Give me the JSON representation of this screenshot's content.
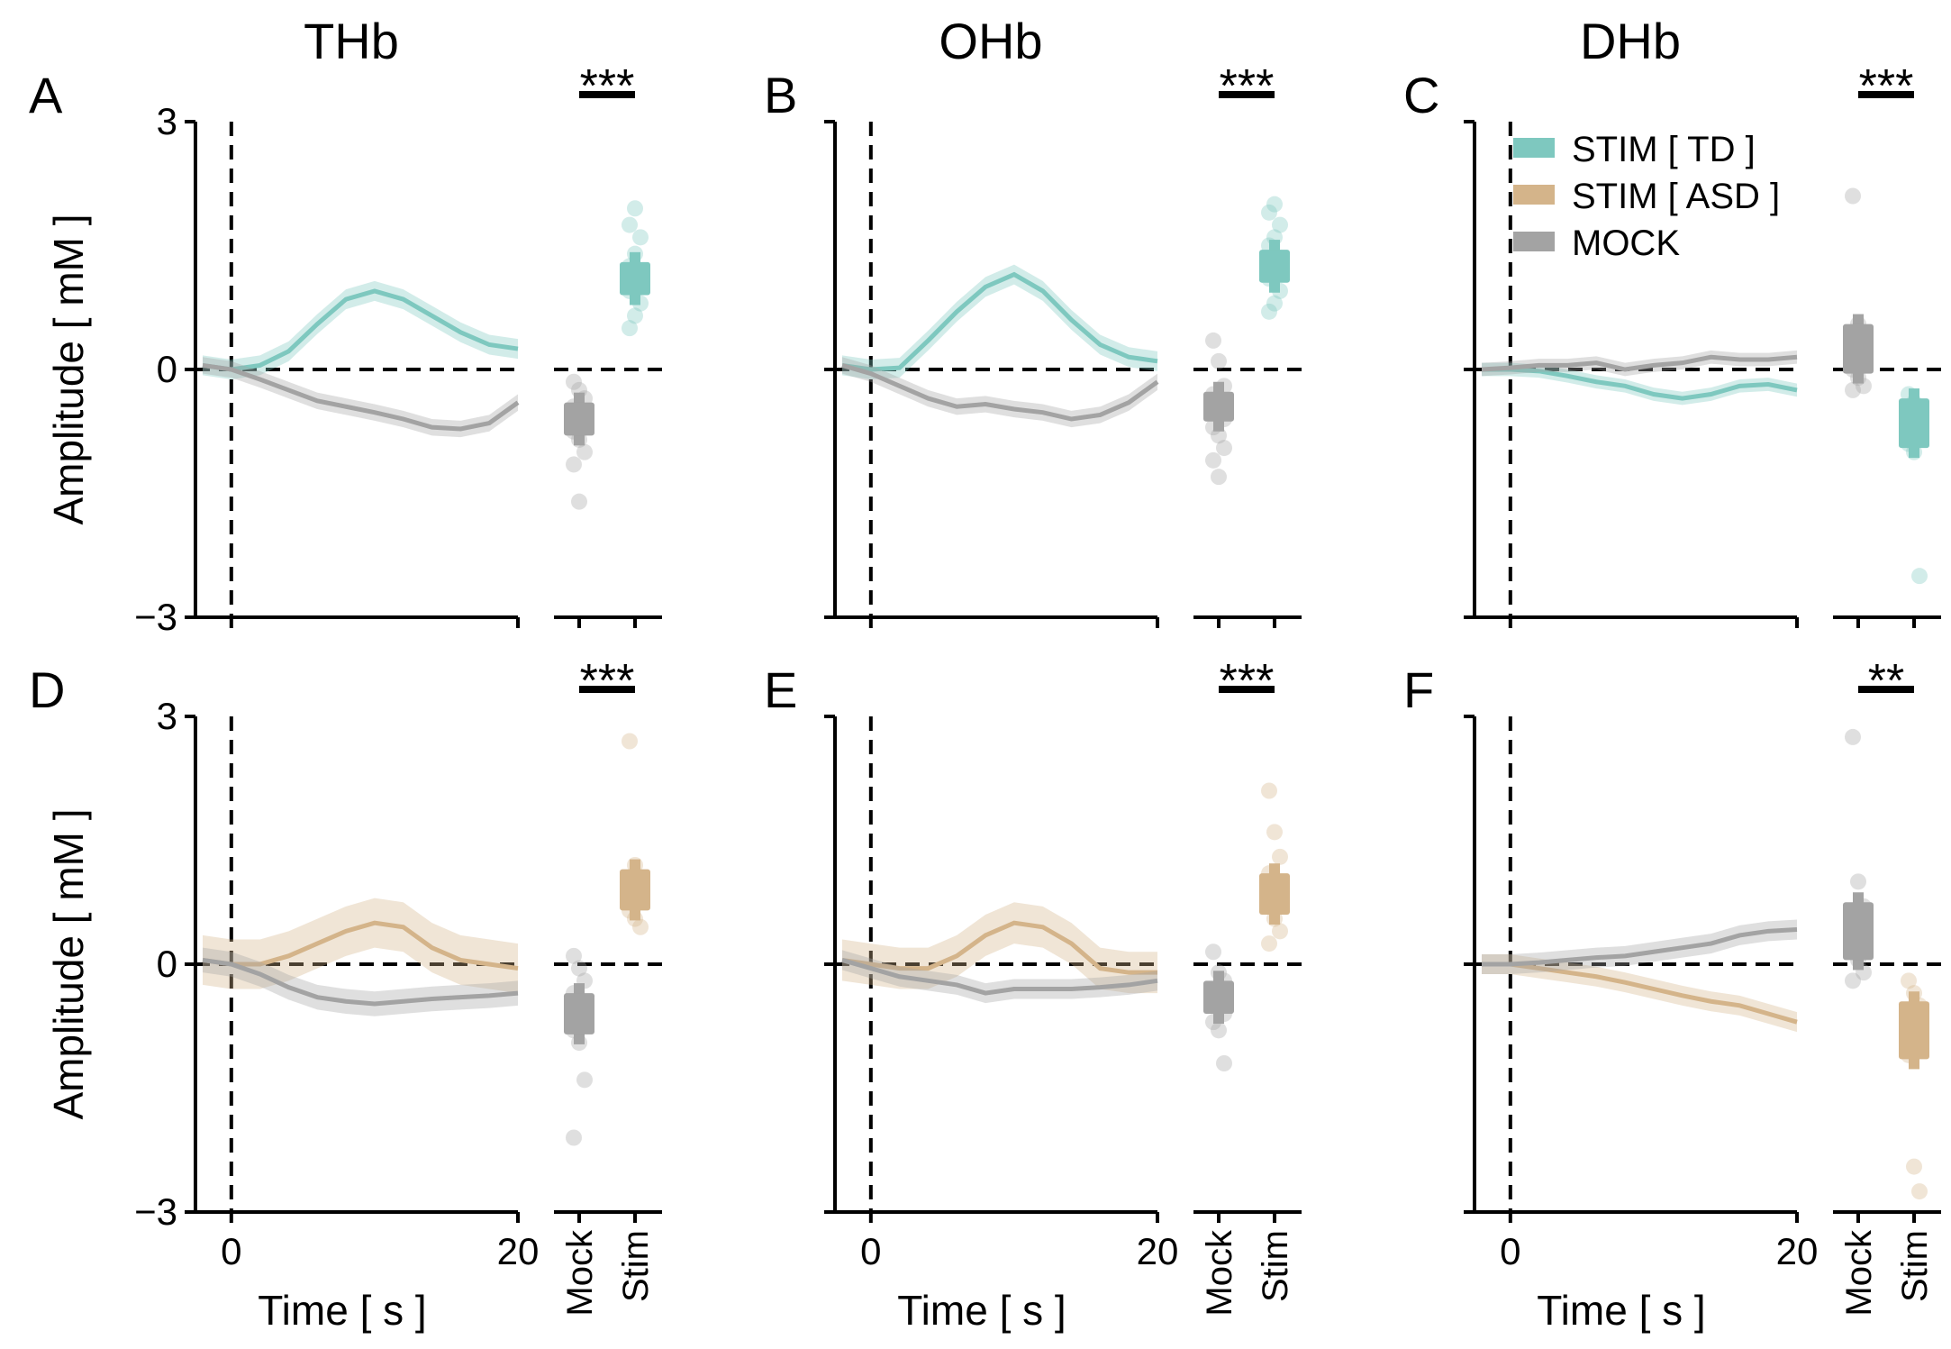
{
  "colors": {
    "td": "#7ec8bf",
    "asd": "#d4b48a",
    "mock": "#a3a3a3",
    "axis": "#000000"
  },
  "legend": {
    "items": [
      {
        "label": "STIM [ TD ]",
        "color": "#7ec8bf"
      },
      {
        "label": "STIM [ ASD ]",
        "color": "#d4b48a"
      },
      {
        "label": "MOCK",
        "color": "#a3a3a3"
      }
    ]
  },
  "labels": {
    "ylabel": "Amplitude [ mM ]",
    "xlabel": "Time [ s ]",
    "mock_tick": "Mock",
    "stim_tick": "Stim"
  },
  "chart_data": [
    {
      "panel": "A",
      "title": "THb",
      "type": "line",
      "group": "td",
      "significance": "***",
      "xlim": [
        -2,
        20
      ],
      "ylim": [
        -3,
        3
      ],
      "xticks": [
        "0",
        "20"
      ],
      "yticks": [
        "3",
        "0",
        "−3"
      ],
      "series": [
        {
          "name": "STIM [ TD ]",
          "color_key": "td",
          "x": [
            -2,
            0,
            2,
            4,
            6,
            8,
            10,
            12,
            14,
            16,
            18,
            20
          ],
          "y": [
            0.05,
            0,
            0.05,
            0.22,
            0.55,
            0.85,
            0.95,
            0.85,
            0.65,
            0.45,
            0.3,
            0.25
          ],
          "band": 0.12
        },
        {
          "name": "MOCK",
          "color_key": "mock",
          "x": [
            -2,
            0,
            2,
            4,
            6,
            8,
            10,
            12,
            14,
            16,
            18,
            20
          ],
          "y": [
            0.05,
            0,
            -0.12,
            -0.25,
            -0.38,
            -0.45,
            -0.52,
            -0.6,
            -0.7,
            -0.72,
            -0.65,
            -0.4
          ],
          "band": 0.1
        }
      ],
      "scatter": {
        "mock": {
          "mean": -0.6,
          "sem": 0.2,
          "points": [
            -0.15,
            -0.25,
            -0.35,
            -0.45,
            -0.55,
            -0.65,
            -0.75,
            -0.85,
            -1.0,
            -1.15,
            -1.6
          ]
        },
        "stim": {
          "mean": 1.1,
          "sem": 0.2,
          "points": [
            0.5,
            0.65,
            0.8,
            0.95,
            1.05,
            1.15,
            1.25,
            1.4,
            1.6,
            1.75,
            1.95
          ]
        }
      }
    },
    {
      "panel": "B",
      "title": "OHb",
      "type": "line",
      "group": "td",
      "significance": "***",
      "xlim": [
        -2,
        20
      ],
      "ylim": [
        -3,
        3
      ],
      "xticks": [
        "0",
        "20"
      ],
      "yticks": [],
      "series": [
        {
          "name": "STIM [ TD ]",
          "color_key": "td",
          "x": [
            -2,
            0,
            2,
            4,
            6,
            8,
            10,
            12,
            14,
            16,
            18,
            20
          ],
          "y": [
            0.05,
            0,
            0.02,
            0.35,
            0.7,
            1.0,
            1.15,
            0.95,
            0.6,
            0.3,
            0.15,
            0.1
          ],
          "band": 0.12
        },
        {
          "name": "MOCK",
          "color_key": "mock",
          "x": [
            -2,
            0,
            2,
            4,
            6,
            8,
            10,
            12,
            14,
            16,
            18,
            20
          ],
          "y": [
            0.05,
            -0.05,
            -0.2,
            -0.35,
            -0.45,
            -0.42,
            -0.48,
            -0.52,
            -0.6,
            -0.55,
            -0.4,
            -0.15
          ],
          "band": 0.1
        }
      ],
      "scatter": {
        "mock": {
          "mean": -0.45,
          "sem": 0.18,
          "points": [
            0.35,
            0.1,
            -0.2,
            -0.3,
            -0.5,
            -0.6,
            -0.7,
            -0.8,
            -0.95,
            -1.1,
            -1.3
          ]
        },
        "stim": {
          "mean": 1.25,
          "sem": 0.2,
          "points": [
            0.7,
            0.8,
            0.95,
            1.1,
            1.2,
            1.35,
            1.5,
            1.6,
            1.75,
            1.9,
            2.0
          ]
        }
      }
    },
    {
      "panel": "C",
      "title": "DHb",
      "type": "line",
      "group": "td",
      "significance": "***",
      "xlim": [
        -2,
        20
      ],
      "ylim": [
        -3,
        3
      ],
      "xticks": [
        "0",
        "20"
      ],
      "yticks": [],
      "series": [
        {
          "name": "STIM [ TD ]",
          "color_key": "td",
          "x": [
            -2,
            0,
            2,
            4,
            6,
            8,
            10,
            12,
            14,
            16,
            18,
            20
          ],
          "y": [
            0,
            0,
            -0.02,
            -0.08,
            -0.15,
            -0.2,
            -0.3,
            -0.35,
            -0.3,
            -0.2,
            -0.18,
            -0.25
          ],
          "band": 0.08
        },
        {
          "name": "MOCK",
          "color_key": "mock",
          "x": [
            -2,
            0,
            2,
            4,
            6,
            8,
            10,
            12,
            14,
            16,
            18,
            20
          ],
          "y": [
            0,
            0.02,
            0.05,
            0.05,
            0.08,
            0.0,
            0.05,
            0.08,
            0.15,
            0.12,
            0.12,
            0.15
          ],
          "band": 0.08
        }
      ],
      "scatter": {
        "mock": {
          "mean": 0.25,
          "sem": 0.3,
          "points": [
            2.1,
            0.55,
            0.4,
            0.3,
            0.2,
            0.1,
            0.0,
            -0.1,
            -0.2,
            -0.25
          ]
        },
        "stim": {
          "mean": -0.65,
          "sem": 0.3,
          "points": [
            -0.3,
            -0.4,
            -0.5,
            -0.6,
            -0.7,
            -0.8,
            -0.9,
            -1.0,
            -2.5
          ]
        }
      }
    },
    {
      "panel": "D",
      "title": "",
      "type": "line",
      "group": "asd",
      "significance": "***",
      "xlim": [
        -2,
        20
      ],
      "ylim": [
        -3,
        3
      ],
      "xticks": [
        "0",
        "20"
      ],
      "yticks": [
        "3",
        "0",
        "−3"
      ],
      "series": [
        {
          "name": "STIM [ ASD ]",
          "color_key": "asd",
          "x": [
            -2,
            0,
            2,
            4,
            6,
            8,
            10,
            12,
            14,
            16,
            18,
            20
          ],
          "y": [
            0.05,
            0,
            0.0,
            0.1,
            0.25,
            0.4,
            0.5,
            0.45,
            0.2,
            0.05,
            0.0,
            -0.05
          ],
          "band": 0.3
        },
        {
          "name": "MOCK",
          "color_key": "mock",
          "x": [
            -2,
            0,
            2,
            4,
            6,
            8,
            10,
            12,
            14,
            16,
            18,
            20
          ],
          "y": [
            0.05,
            0,
            -0.12,
            -0.28,
            -0.4,
            -0.45,
            -0.48,
            -0.45,
            -0.42,
            -0.4,
            -0.38,
            -0.35
          ],
          "band": 0.15
        }
      ],
      "scatter": {
        "mock": {
          "mean": -0.6,
          "sem": 0.25,
          "points": [
            0.1,
            -0.05,
            -0.2,
            -0.35,
            -0.5,
            -0.65,
            -0.8,
            -0.95,
            -1.4,
            -2.1
          ]
        },
        "stim": {
          "mean": 0.9,
          "sem": 0.25,
          "points": [
            2.7,
            1.2,
            1.05,
            0.95,
            0.85,
            0.75,
            0.65,
            0.55,
            0.45
          ]
        }
      }
    },
    {
      "panel": "E",
      "title": "",
      "type": "line",
      "group": "asd",
      "significance": "***",
      "xlim": [
        -2,
        20
      ],
      "ylim": [
        -3,
        3
      ],
      "xticks": [
        "0",
        "20"
      ],
      "yticks": [],
      "series": [
        {
          "name": "STIM [ ASD ]",
          "color_key": "asd",
          "x": [
            -2,
            0,
            2,
            4,
            6,
            8,
            10,
            12,
            14,
            16,
            18,
            20
          ],
          "y": [
            0.05,
            0,
            -0.05,
            -0.05,
            0.1,
            0.35,
            0.5,
            0.45,
            0.25,
            -0.05,
            -0.1,
            -0.1
          ],
          "band": 0.25
        },
        {
          "name": "MOCK",
          "color_key": "mock",
          "x": [
            -2,
            0,
            2,
            4,
            6,
            8,
            10,
            12,
            14,
            16,
            18,
            20
          ],
          "y": [
            0.05,
            -0.05,
            -0.15,
            -0.2,
            -0.25,
            -0.35,
            -0.3,
            -0.3,
            -0.3,
            -0.28,
            -0.25,
            -0.2
          ],
          "band": 0.12
        }
      ],
      "scatter": {
        "mock": {
          "mean": -0.4,
          "sem": 0.2,
          "points": [
            0.15,
            -0.1,
            -0.2,
            -0.35,
            -0.5,
            -0.6,
            -0.7,
            -0.8,
            -1.2
          ]
        },
        "stim": {
          "mean": 0.85,
          "sem": 0.25,
          "points": [
            2.1,
            1.6,
            1.3,
            1.1,
            0.95,
            0.8,
            0.7,
            0.55,
            0.4,
            0.25
          ]
        }
      }
    },
    {
      "panel": "F",
      "title": "",
      "type": "line",
      "group": "asd",
      "significance": "**",
      "xlim": [
        -2,
        20
      ],
      "ylim": [
        -3,
        3
      ],
      "xticks": [
        "0",
        "20"
      ],
      "yticks": [],
      "series": [
        {
          "name": "STIM [ ASD ]",
          "color_key": "asd",
          "x": [
            -2,
            0,
            2,
            4,
            6,
            8,
            10,
            12,
            14,
            16,
            18,
            20
          ],
          "y": [
            0,
            0,
            -0.05,
            -0.1,
            -0.15,
            -0.22,
            -0.3,
            -0.38,
            -0.45,
            -0.5,
            -0.6,
            -0.7
          ],
          "band": 0.12
        },
        {
          "name": "MOCK",
          "color_key": "mock",
          "x": [
            -2,
            0,
            2,
            4,
            6,
            8,
            10,
            12,
            14,
            16,
            18,
            20
          ],
          "y": [
            0,
            0,
            0.02,
            0.05,
            0.08,
            0.1,
            0.15,
            0.2,
            0.25,
            0.35,
            0.4,
            0.42
          ],
          "band": 0.12
        }
      ],
      "scatter": {
        "mock": {
          "mean": 0.4,
          "sem": 0.35,
          "points": [
            2.75,
            1.0,
            0.7,
            0.55,
            0.4,
            0.25,
            0.15,
            0.05,
            -0.1,
            -0.2
          ]
        },
        "stim": {
          "mean": -0.8,
          "sem": 0.35,
          "points": [
            -0.2,
            -0.35,
            -0.5,
            -0.65,
            -0.8,
            -0.95,
            -1.1,
            -2.45,
            -2.75
          ]
        }
      }
    }
  ]
}
